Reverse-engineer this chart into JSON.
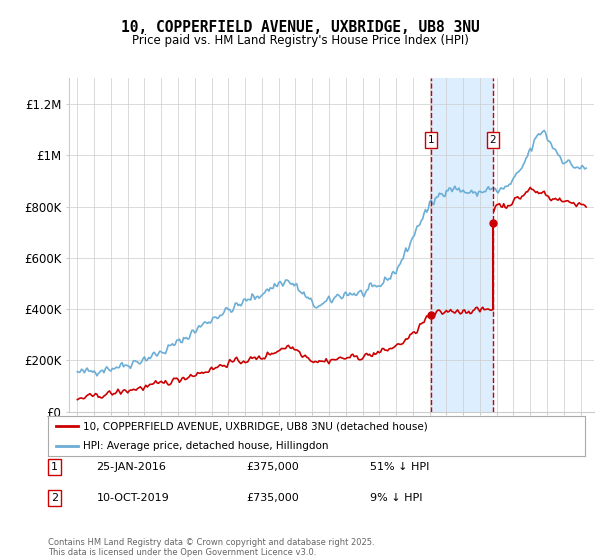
{
  "title": "10, COPPERFIELD AVENUE, UXBRIDGE, UB8 3NU",
  "subtitle": "Price paid vs. HM Land Registry's House Price Index (HPI)",
  "ylim": [
    0,
    1300000
  ],
  "yticks": [
    0,
    200000,
    400000,
    600000,
    800000,
    1000000,
    1200000
  ],
  "ytick_labels": [
    "£0",
    "£200K",
    "£400K",
    "£600K",
    "£800K",
    "£1M",
    "£1.2M"
  ],
  "hpi_color": "#6baed6",
  "price_color": "#cc0000",
  "sale1_date": "25-JAN-2016",
  "sale1_price": 375000,
  "sale1_note": "51% ↓ HPI",
  "sale2_date": "10-OCT-2019",
  "sale2_price": 735000,
  "sale2_note": "9% ↓ HPI",
  "sale1_year": 2016.07,
  "sale2_year": 2019.78,
  "legend_label_price": "10, COPPERFIELD AVENUE, UXBRIDGE, UB8 3NU (detached house)",
  "legend_label_hpi": "HPI: Average price, detached house, Hillingdon",
  "footer": "Contains HM Land Registry data © Crown copyright and database right 2025.\nThis data is licensed under the Open Government Licence v3.0.",
  "background_color": "#ffffff",
  "grid_color": "#cccccc",
  "shade_color": "#ddeeff"
}
